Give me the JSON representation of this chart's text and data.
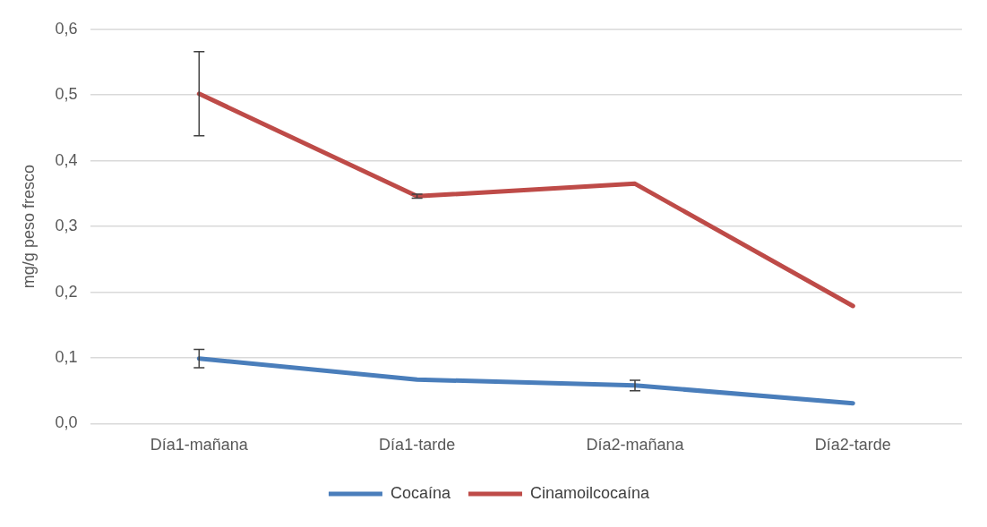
{
  "chart_data": {
    "type": "line",
    "ylabel": "mg/g peso fresco",
    "categories": [
      "Día1-mañana",
      "Día1-tarde",
      "Día2-mañana",
      "Día2-tarde"
    ],
    "series": [
      {
        "name": "Cocaína",
        "color": "#4a7ebb",
        "values": [
          0.099,
          0.067,
          0.058,
          0.031
        ],
        "errors": [
          0.014,
          null,
          0.008,
          null
        ]
      },
      {
        "name": "Cinamoilcocaína",
        "color": "#be4b48",
        "values": [
          0.502,
          0.346,
          0.365,
          0.179
        ],
        "errors": [
          0.064,
          0.003,
          null,
          null
        ]
      }
    ],
    "ylim": [
      0,
      0.6
    ],
    "yticks": [
      {
        "value": 0,
        "label": "0,0"
      },
      {
        "value": 0.1,
        "label": "0,1"
      },
      {
        "value": 0.2,
        "label": "0,2"
      },
      {
        "value": 0.3,
        "label": "0,3"
      },
      {
        "value": 0.4,
        "label": "0,4"
      },
      {
        "value": 0.5,
        "label": "0,5"
      },
      {
        "value": 0.6,
        "label": "0,6"
      }
    ],
    "grid": "y",
    "legend": "bottom",
    "marker": "none",
    "line_style": "solid"
  }
}
